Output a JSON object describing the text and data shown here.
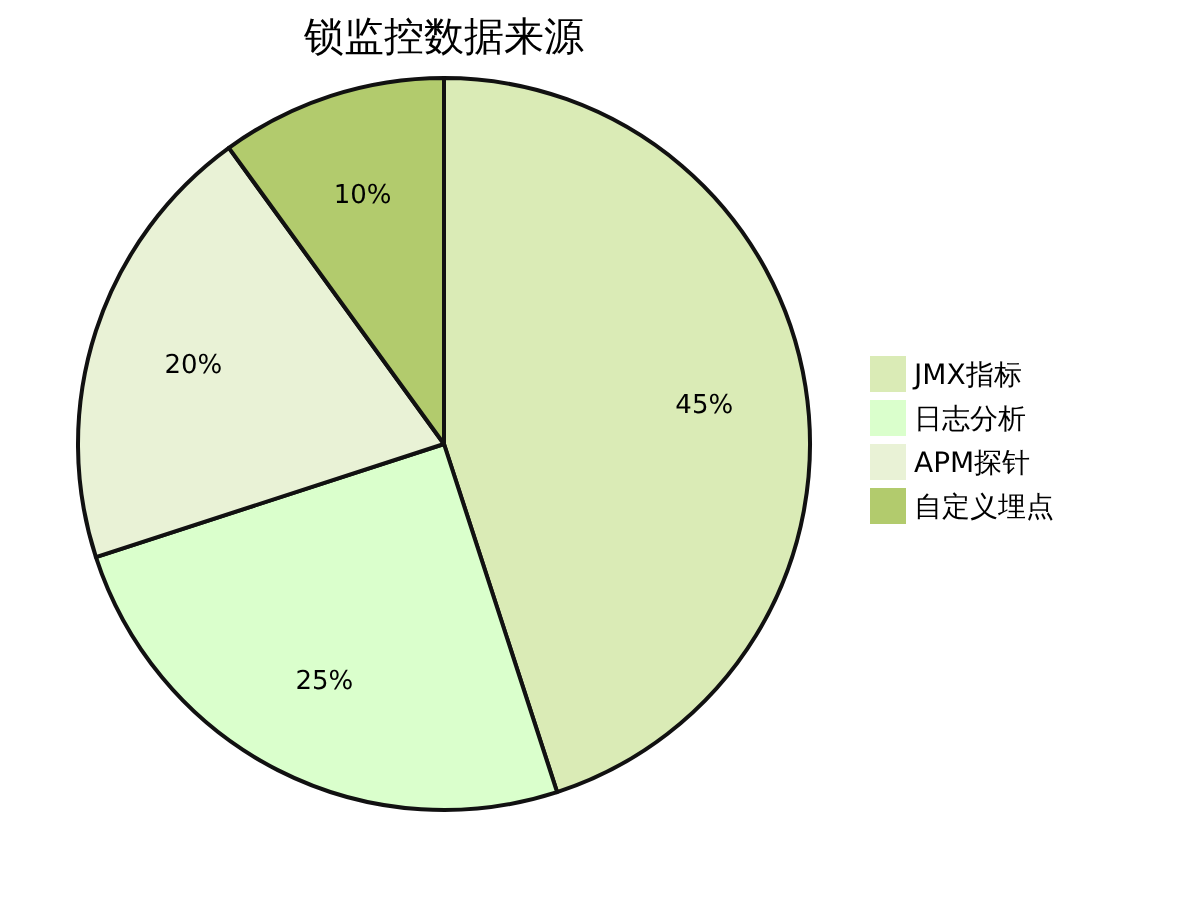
{
  "chart_data": {
    "type": "pie",
    "title": "锁监控数据来源",
    "categories": [
      "JMX指标",
      "日志分析",
      "APM探针",
      "自定义埋点"
    ],
    "values": [
      45,
      25,
      20,
      10
    ],
    "colors": [
      "#daebb6",
      "#daffcc",
      "#e9f2d6",
      "#b2cb6d"
    ],
    "value_labels": [
      "45%",
      "25%",
      "20%",
      "10%"
    ],
    "legend": "right"
  }
}
